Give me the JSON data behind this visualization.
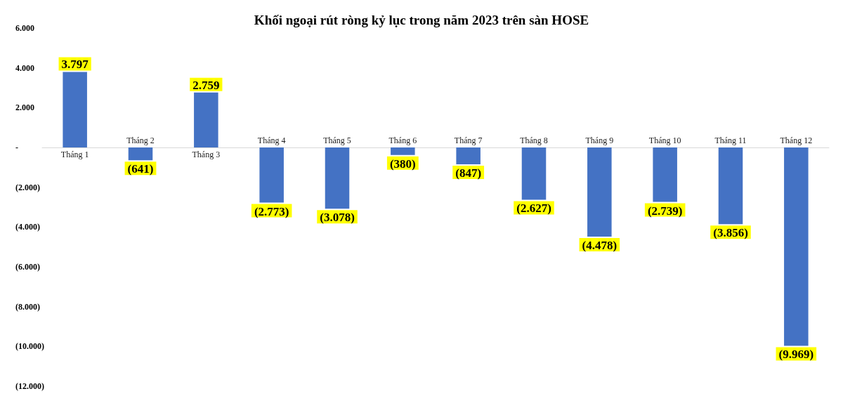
{
  "chart_data": {
    "type": "bar",
    "title": "Khối ngoại rút ròng kỷ lục trong năm 2023 trên sàn HOSE",
    "categories": [
      "Tháng 1",
      "Tháng 2",
      "Tháng 3",
      "Tháng 4",
      "Tháng 5",
      "Tháng 6",
      "Tháng 7",
      "Tháng 8",
      "Tháng 9",
      "Tháng 10",
      "Tháng 11",
      "Tháng 12"
    ],
    "values": [
      3797,
      -641,
      2759,
      -2773,
      -3078,
      -380,
      -847,
      -2627,
      -4478,
      -2739,
      -3856,
      -9969
    ],
    "value_labels": [
      "3.797",
      "(641)",
      "2.759",
      "(2.773)",
      "(3.078)",
      "(380)",
      "(847)",
      "(2.627)",
      "(4.478)",
      "(2.739)",
      "(3.856)",
      "(9.969)"
    ],
    "color": "#4472c4",
    "ylim": [
      -12000,
      6000
    ],
    "yticks": [
      {
        "value": 6000,
        "label": "6.000"
      },
      {
        "value": 4000,
        "label": "4.000"
      },
      {
        "value": 2000,
        "label": "2.000"
      },
      {
        "value": 0,
        "label": "-"
      },
      {
        "value": -2000,
        "label": "(2.000)"
      },
      {
        "value": -4000,
        "label": "(4.000)"
      },
      {
        "value": -6000,
        "label": "(6.000)"
      },
      {
        "value": -8000,
        "label": "(8.000)"
      },
      {
        "value": -10000,
        "label": "(10.000)"
      },
      {
        "value": -12000,
        "label": "(12.000)"
      }
    ],
    "grid": false
  }
}
